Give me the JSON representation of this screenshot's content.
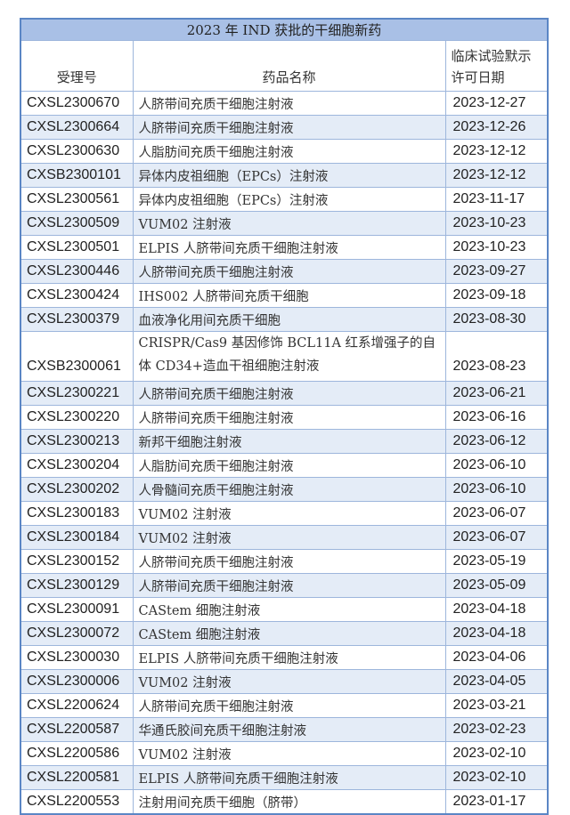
{
  "title": "2023 年 IND 获批的干细胞新药",
  "headers": {
    "id": "受理号",
    "name": "药品名称",
    "date": "临床试验默示许可日期"
  },
  "rows": [
    {
      "id": "CXSL2300670",
      "name": "人脐带间充质干细胞注射液",
      "date": "2023-12-27"
    },
    {
      "id": "CXSL2300664",
      "name": "人脐带间充质干细胞注射液",
      "date": "2023-12-26"
    },
    {
      "id": "CXSL2300630",
      "name": "人脂肪间充质干细胞注射液",
      "date": "2023-12-12"
    },
    {
      "id": "CXSB2300101",
      "name": "异体内皮祖细胞（EPCs）注射液",
      "date": "2023-12-12"
    },
    {
      "id": "CXSL2300561",
      "name": "异体内皮祖细胞（EPCs）注射液",
      "date": "2023-11-17"
    },
    {
      "id": "CXSL2300509",
      "name": "VUM02 注射液",
      "date": "2023-10-23"
    },
    {
      "id": "CXSL2300501",
      "name": "ELPIS 人脐带间充质干细胞注射液",
      "date": "2023-10-23"
    },
    {
      "id": "CXSL2300446",
      "name": "人脐带间充质干细胞注射液",
      "date": "2023-09-27"
    },
    {
      "id": "CXSL2300424",
      "name": "IHS002 人脐带间充质干细胞",
      "date": "2023-09-18"
    },
    {
      "id": "CXSL2300379",
      "name": "血液净化用间充质干细胞",
      "date": "2023-08-30"
    },
    {
      "id": "CXSB2300061",
      "name": "CRISPR/Cas9 基因修饰 BCL11A 红系增强子的自体 CD34+造血干祖细胞注射液",
      "date": "2023-08-23"
    },
    {
      "id": "CXSL2300221",
      "name": "人脐带间充质干细胞注射液",
      "date": "2023-06-21"
    },
    {
      "id": "CXSL2300220",
      "name": "人脐带间充质干细胞注射液",
      "date": "2023-06-16"
    },
    {
      "id": "CXSL2300213",
      "name": "新邦干细胞注射液",
      "date": "2023-06-12"
    },
    {
      "id": "CXSL2300204",
      "name": "人脂肪间充质干细胞注射液",
      "date": "2023-06-10"
    },
    {
      "id": "CXSL2300202",
      "name": "人骨髓间充质干细胞注射液",
      "date": "2023-06-10"
    },
    {
      "id": "CXSL2300183",
      "name": "VUM02 注射液",
      "date": "2023-06-07"
    },
    {
      "id": "CXSL2300184",
      "name": "VUM02 注射液",
      "date": "2023-06-07"
    },
    {
      "id": "CXSL2300152",
      "name": "人脐带间充质干细胞注射液",
      "date": "2023-05-19"
    },
    {
      "id": "CXSL2300129",
      "name": "人脐带间充质干细胞注射液",
      "date": "2023-05-09"
    },
    {
      "id": "CXSL2300091",
      "name": "CAStem 细胞注射液",
      "date": "2023-04-18"
    },
    {
      "id": "CXSL2300072",
      "name": "CAStem 细胞注射液",
      "date": "2023-04-18"
    },
    {
      "id": "CXSL2300030",
      "name": "ELPIS 人脐带间充质干细胞注射液",
      "date": "2023-04-06"
    },
    {
      "id": "CXSL2300006",
      "name": "VUM02 注射液",
      "date": "2023-04-05"
    },
    {
      "id": "CXSL2200624",
      "name": "人脐带间充质干细胞注射液",
      "date": "2023-03-21"
    },
    {
      "id": "CXSL2200587",
      "name": "华通氏胶间充质干细胞注射液",
      "date": "2023-02-23"
    },
    {
      "id": "CXSL2200586",
      "name": "VUM02 注射液",
      "date": "2023-02-10"
    },
    {
      "id": "CXSL2200581",
      "name": "ELPIS 人脐带间充质干细胞注射液",
      "date": "2023-02-10"
    },
    {
      "id": "CXSL2200553",
      "name": "注射用间充质干细胞（脐带）",
      "date": "2023-01-17"
    }
  ]
}
